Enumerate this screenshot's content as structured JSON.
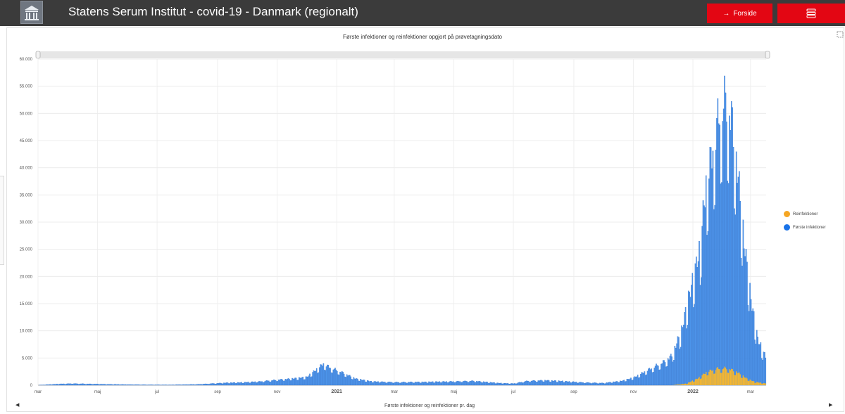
{
  "header": {
    "title": "Statens Serum Institut - covid-19 - Danmark (regionalt)",
    "home_button": "Forside",
    "home_icon": "arrow-right-icon",
    "menu_icon": "stacked-menu-icon",
    "brand_color": "#e30613",
    "bar_color": "#3b3b3b"
  },
  "legend": {
    "items": [
      {
        "label": "Reinfektioner",
        "color": "#f5a623"
      },
      {
        "label": "Første infektioner",
        "color": "#1a73e8"
      }
    ]
  },
  "chart_data": {
    "type": "bar",
    "stacked": true,
    "title": "Første infektioner og reinfektioner opgjort på prøvetagningsdato",
    "xlabel": "Første infektioner og reinfektioner pr. dag",
    "ylabel": "",
    "ylim": [
      0,
      60000
    ],
    "yticks": [
      "0",
      "5.000",
      "10.000",
      "15.000",
      "20.000",
      "25.000",
      "30.000",
      "35.000",
      "40.000",
      "45.000",
      "50.000",
      "55.000",
      "60.000"
    ],
    "xticks": [
      "mar",
      "maj",
      "jul",
      "sep",
      "nov",
      "2021",
      "mar",
      "maj",
      "jul",
      "sep",
      "nov",
      "2022",
      "mar"
    ],
    "bold_xticks": [
      "2021",
      "2022"
    ],
    "x_range": [
      "2020-03-01",
      "2022-03-17"
    ],
    "grid": true,
    "legend_position": "right",
    "series": [
      {
        "name": "Første infektioner",
        "color": "#4d94ea",
        "keypoints": [
          [
            "2020-03-01",
            0
          ],
          [
            "2020-03-10",
            100
          ],
          [
            "2020-03-25",
            250
          ],
          [
            "2020-04-05",
            300
          ],
          [
            "2020-04-20",
            250
          ],
          [
            "2020-05-15",
            150
          ],
          [
            "2020-06-15",
            80
          ],
          [
            "2020-07-15",
            60
          ],
          [
            "2020-08-10",
            150
          ],
          [
            "2020-08-25",
            300
          ],
          [
            "2020-09-10",
            450
          ],
          [
            "2020-09-25",
            500
          ],
          [
            "2020-10-15",
            700
          ],
          [
            "2020-10-31",
            1000
          ],
          [
            "2020-11-15",
            1200
          ],
          [
            "2020-12-01",
            1500
          ],
          [
            "2020-12-10",
            2800
          ],
          [
            "2020-12-18",
            4000
          ],
          [
            "2020-12-25",
            3300
          ],
          [
            "2021-01-05",
            2500
          ],
          [
            "2021-01-20",
            1200
          ],
          [
            "2021-02-05",
            700
          ],
          [
            "2021-03-01",
            550
          ],
          [
            "2021-04-01",
            600
          ],
          [
            "2021-05-01",
            700
          ],
          [
            "2021-05-20",
            800
          ],
          [
            "2021-06-15",
            400
          ],
          [
            "2021-07-01",
            300
          ],
          [
            "2021-07-15",
            800
          ],
          [
            "2021-08-01",
            900
          ],
          [
            "2021-08-20",
            750
          ],
          [
            "2021-09-10",
            500
          ],
          [
            "2021-10-01",
            400
          ],
          [
            "2021-10-20",
            800
          ],
          [
            "2021-11-01",
            1400
          ],
          [
            "2021-11-15",
            2800
          ],
          [
            "2021-12-01",
            4300
          ],
          [
            "2021-12-10",
            5500
          ],
          [
            "2021-12-20",
            10000
          ],
          [
            "2021-12-26",
            15000
          ],
          [
            "2022-01-01",
            19000
          ],
          [
            "2022-01-08",
            24000
          ],
          [
            "2022-01-14",
            35000
          ],
          [
            "2022-01-22",
            42000
          ],
          [
            "2022-01-28",
            48000
          ],
          [
            "2022-02-03",
            50000
          ],
          [
            "2022-02-09",
            47000
          ],
          [
            "2022-02-15",
            38000
          ],
          [
            "2022-02-22",
            25000
          ],
          [
            "2022-03-01",
            15000
          ],
          [
            "2022-03-08",
            8000
          ],
          [
            "2022-03-17",
            4500
          ]
        ]
      },
      {
        "name": "Reinfektioner",
        "color": "#f5b731",
        "keypoints": [
          [
            "2021-12-10",
            0
          ],
          [
            "2021-12-25",
            300
          ],
          [
            "2022-01-05",
            1200
          ],
          [
            "2022-01-15",
            2500
          ],
          [
            "2022-01-25",
            3100
          ],
          [
            "2022-02-05",
            3200
          ],
          [
            "2022-02-15",
            2400
          ],
          [
            "2022-02-25",
            1200
          ],
          [
            "2022-03-05",
            600
          ],
          [
            "2022-03-17",
            300
          ]
        ]
      }
    ]
  }
}
